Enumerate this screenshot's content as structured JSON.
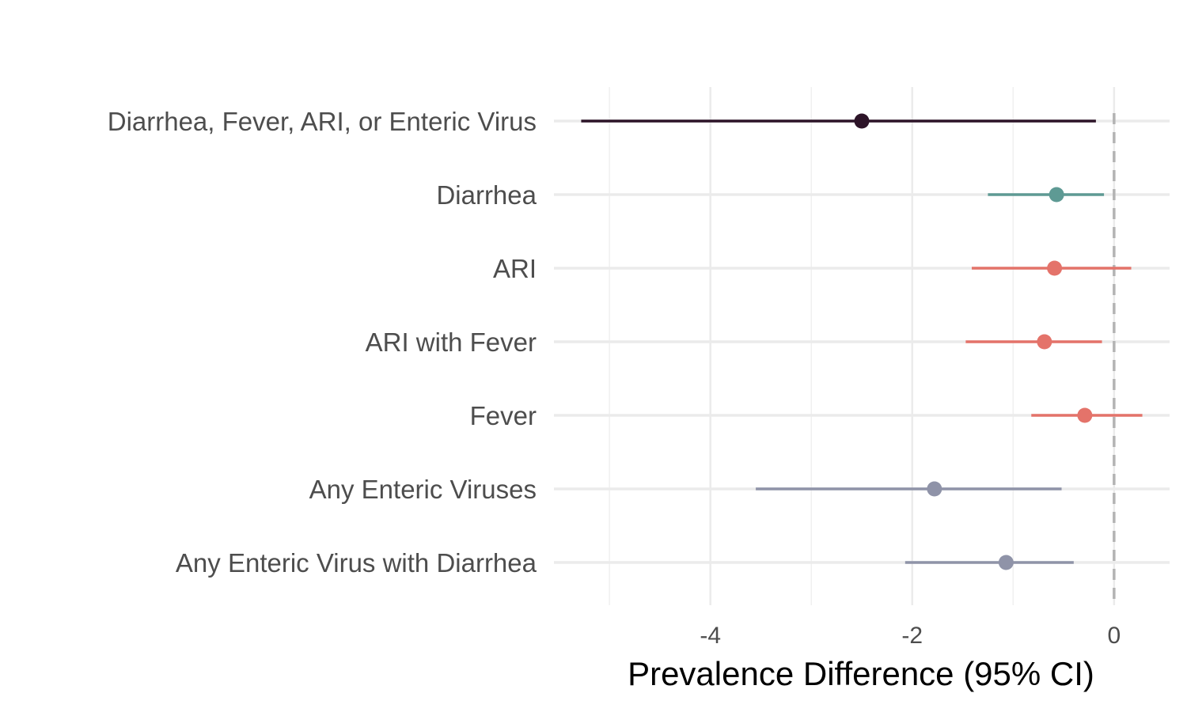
{
  "chart_data": {
    "type": "forest",
    "title": "",
    "xlabel": "Prevalence Difference (95% CI)",
    "ylabel": "",
    "xlim": [
      -5.55,
      0.55
    ],
    "x_ticks": [
      -4,
      -2,
      0
    ],
    "x_tick_labels": [
      "-4",
      "-2",
      "0"
    ],
    "reference_line": 0,
    "grid": true,
    "legend": "none",
    "rows": [
      {
        "label": "Diarrhea, Fever, ARI, or Enteric Virus",
        "estimate": -2.5,
        "lower": -5.28,
        "upper": -0.18,
        "color": "#2d1428"
      },
      {
        "label": "Diarrhea",
        "estimate": -0.57,
        "lower": -1.25,
        "upper": -0.1,
        "color": "#5e9a94"
      },
      {
        "label": "ARI",
        "estimate": -0.59,
        "lower": -1.41,
        "upper": 0.17,
        "color": "#e4736a"
      },
      {
        "label": "ARI with Fever",
        "estimate": -0.69,
        "lower": -1.47,
        "upper": -0.12,
        "color": "#e4736a"
      },
      {
        "label": "Fever",
        "estimate": -0.29,
        "lower": -0.82,
        "upper": 0.28,
        "color": "#e4736a"
      },
      {
        "label": "Any Enteric Viruses",
        "estimate": -1.78,
        "lower": -3.55,
        "upper": -0.52,
        "color": "#8f93a8"
      },
      {
        "label": "Any Enteric Virus with Diarrhea",
        "estimate": -1.07,
        "lower": -2.07,
        "upper": -0.4,
        "color": "#8f93a8"
      }
    ]
  }
}
